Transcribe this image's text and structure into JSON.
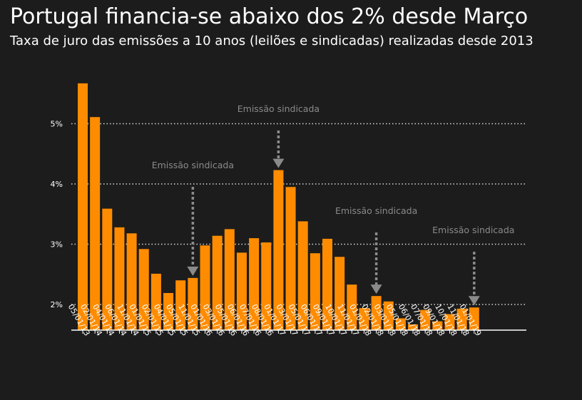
{
  "header": {
    "title": "Portugal financia-se abaixo dos 2% desde Março",
    "subtitle": "Taxa de juro das emissões a 10 anos (leilões e sindicadas) realizadas desde 2013"
  },
  "chart_data": {
    "type": "bar",
    "title": "Portugal financia-se abaixo dos 2% desde Março",
    "subtitle": "Taxa de juro das emissões a 10 anos (leilões e sindicadas) realizadas desde 2013",
    "xlabel": "",
    "ylabel": "",
    "ylim": [
      1.55,
      5.8
    ],
    "ytick_values": [
      2,
      3,
      4,
      5
    ],
    "ytick_labels": [
      "2%",
      "3%",
      "4%",
      "5%"
    ],
    "grid": "horizontal dotted",
    "bar_color": "#ff8c00",
    "annotation_color": "#8a8a8a",
    "background": "#1c1c1c",
    "categories": [
      "05/01/13",
      "02/01/14",
      "04/01/14",
      "06/01/14",
      "11/01/14",
      "01/01/15",
      "02/01/15",
      "04/01/15",
      "05/01/15",
      "11/01/15",
      "01/01/16",
      "03/01/16",
      "05/01/16",
      "06/01/16",
      "07/01/16",
      "08/01/16",
      "01/01/17",
      "03/01/17",
      "05/01/17",
      "06/01/17",
      "09/01/17",
      "10/01/17",
      "11/01/17",
      "01/01/18",
      "02/01/18",
      "03/01/18",
      "05/01/18",
      "06/01/18",
      "07/01/18",
      "09/01/18",
      "10/01/18",
      "11/01/18",
      "01/01/19"
    ],
    "values": [
      5.67,
      5.11,
      3.59,
      3.28,
      3.18,
      2.92,
      2.51,
      2.19,
      2.4,
      2.44,
      2.98,
      3.14,
      3.25,
      2.86,
      3.1,
      3.03,
      4.23,
      3.95,
      3.38,
      2.85,
      3.09,
      2.79,
      2.33,
      1.94,
      2.14,
      2.05,
      1.77,
      1.67,
      1.91,
      1.72,
      1.84,
      1.93,
      1.95
    ],
    "annotations": [
      {
        "text": "Emissão sindicada",
        "bar_index": 9
      },
      {
        "text": "Emissão sindicada",
        "bar_index": 16
      },
      {
        "text": "Emissão sindicada",
        "bar_index": 24
      },
      {
        "text": "Emissão sindicada",
        "bar_index": 32
      }
    ]
  }
}
